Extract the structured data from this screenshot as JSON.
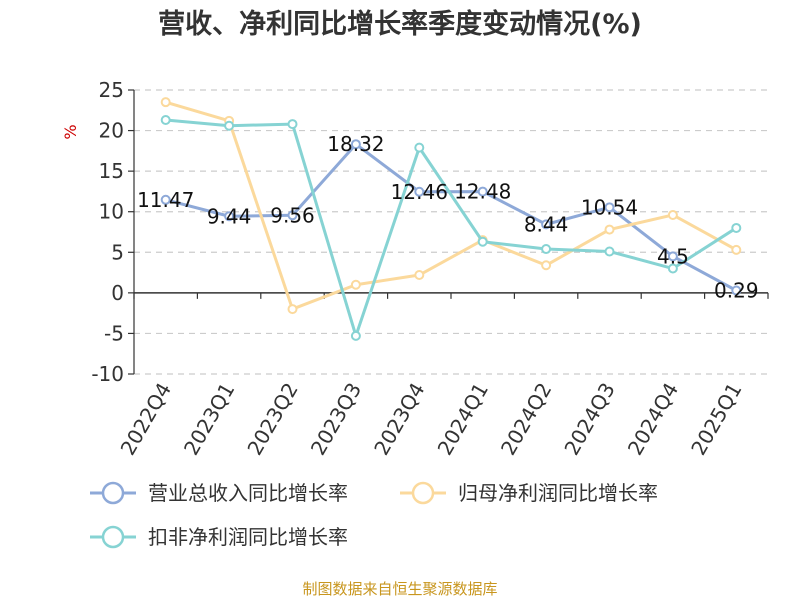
{
  "chart_data": {
    "type": "line",
    "title": "营收、净利同比增长率季度变动情况(%)",
    "ylabel": "%",
    "xlabel": "",
    "categories": [
      "2022Q4",
      "2023Q1",
      "2023Q2",
      "2023Q3",
      "2023Q4",
      "2024Q1",
      "2024Q2",
      "2024Q3",
      "2024Q4",
      "2025Q1"
    ],
    "ylim": [
      -10,
      25
    ],
    "yticks": [
      25,
      20,
      15,
      10,
      5,
      0,
      -5,
      -10
    ],
    "grid": true,
    "legend_placement": "bottom",
    "series": [
      {
        "name": "营业总收入同比增长率",
        "color": "#8ea9d8",
        "values": [
          11.47,
          9.44,
          9.56,
          18.32,
          12.46,
          12.48,
          8.44,
          10.54,
          4.5,
          0.29
        ],
        "labels": [
          "11.47",
          "9.44",
          "9.56",
          "18.32",
          "12.46",
          "12.48",
          "8.44",
          "10.54",
          "4.5",
          "0.29"
        ]
      },
      {
        "name": "归母净利润同比增长率",
        "color": "#fbd99c",
        "values": [
          23.5,
          21.2,
          -2.0,
          1.0,
          2.2,
          6.5,
          3.4,
          7.8,
          9.6,
          5.3
        ]
      },
      {
        "name": "扣非净利润同比增长率",
        "color": "#86d3d3",
        "values": [
          21.3,
          20.6,
          20.8,
          -5.3,
          17.9,
          6.3,
          5.4,
          5.1,
          3.0,
          8.0
        ]
      }
    ]
  },
  "footer": {
    "source": "制图数据来自恒生聚源数据库"
  }
}
